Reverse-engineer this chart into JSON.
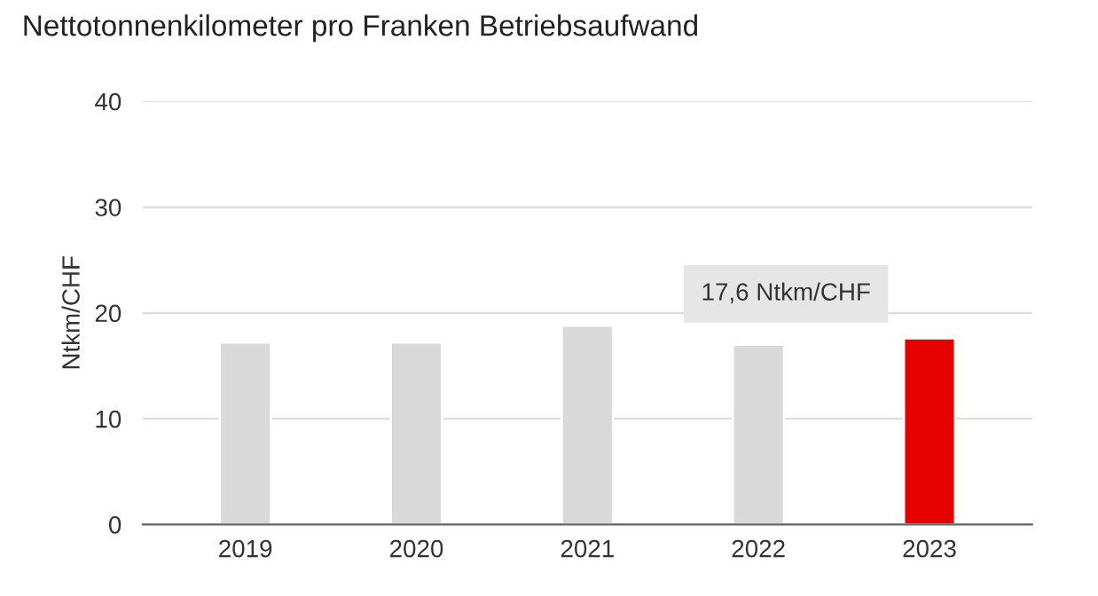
{
  "chart_data": {
    "type": "bar",
    "title": "Nettotonnenkilometer pro Franken Betriebsaufwand",
    "ylabel": "Ntkm/CHF",
    "categories": [
      "2019",
      "2020",
      "2021",
      "2022",
      "2023"
    ],
    "values": [
      17.2,
      17.2,
      18.8,
      17.0,
      17.6
    ],
    "colors": [
      "#d9d9d9",
      "#d9d9d9",
      "#d9d9d9",
      "#d9d9d9",
      "#e60000"
    ],
    "ylim": [
      0,
      40
    ],
    "yticks": [
      0,
      10,
      20,
      30,
      40
    ],
    "grid": "y",
    "legend": false,
    "annotations": [
      {
        "text": "17,6 Ntkm/CHF",
        "x": "2023",
        "y": 17.6
      }
    ]
  }
}
